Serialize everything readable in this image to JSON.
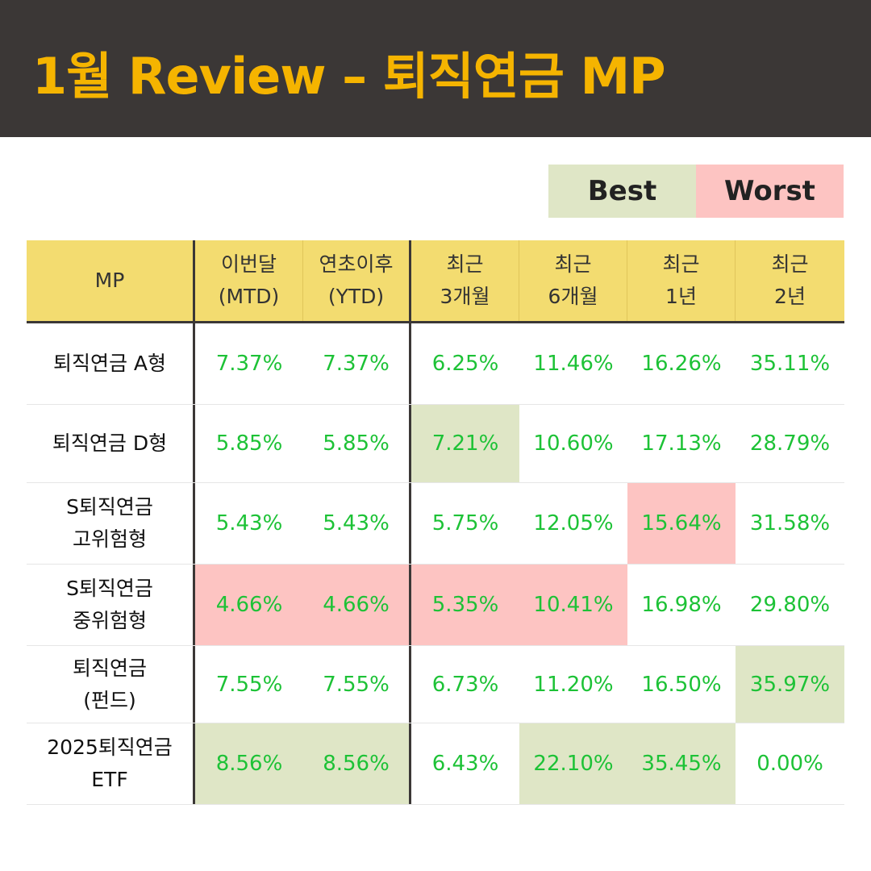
{
  "title": "1월 Review – 퇴직연금 MP",
  "legend": {
    "best": "Best",
    "worst": "Worst",
    "best_color": "#dfe6c6",
    "worst_color": "#fdc4c2"
  },
  "columns": [
    {
      "line1": "MP",
      "line2": ""
    },
    {
      "line1": "이번달",
      "line2": "(MTD)"
    },
    {
      "line1": "연초이후",
      "line2": "(YTD)"
    },
    {
      "line1": "최근",
      "line2": "3개월"
    },
    {
      "line1": "최근",
      "line2": "6개월"
    },
    {
      "line1": "최근",
      "line2": "1년"
    },
    {
      "line1": "최근",
      "line2": "2년"
    }
  ],
  "rows": [
    {
      "name1": "퇴직연금 A형",
      "name2": "",
      "values": [
        "7.37%",
        "7.37%",
        "6.25%",
        "11.46%",
        "16.26%",
        "35.11%"
      ],
      "marks": [
        "",
        "",
        "",
        "",
        "",
        ""
      ]
    },
    {
      "name1": "퇴직연금 D형",
      "name2": "",
      "values": [
        "5.85%",
        "5.85%",
        "7.21%",
        "10.60%",
        "17.13%",
        "28.79%"
      ],
      "marks": [
        "",
        "",
        "best",
        "",
        "",
        ""
      ]
    },
    {
      "name1": "S퇴직연금",
      "name2": "고위험형",
      "values": [
        "5.43%",
        "5.43%",
        "5.75%",
        "12.05%",
        "15.64%",
        "31.58%"
      ],
      "marks": [
        "",
        "",
        "",
        "",
        "worst",
        ""
      ]
    },
    {
      "name1": "S퇴직연금",
      "name2": "중위험형",
      "values": [
        "4.66%",
        "4.66%",
        "5.35%",
        "10.41%",
        "16.98%",
        "29.80%"
      ],
      "marks": [
        "worst",
        "worst",
        "worst",
        "worst",
        "",
        ""
      ]
    },
    {
      "name1": "퇴직연금",
      "name2": "(펀드)",
      "values": [
        "7.55%",
        "7.55%",
        "6.73%",
        "11.20%",
        "16.50%",
        "35.97%"
      ],
      "marks": [
        "",
        "",
        "",
        "",
        "",
        "best"
      ]
    },
    {
      "name1": "2025퇴직연금",
      "name2": "ETF",
      "values": [
        "8.56%",
        "8.56%",
        "6.43%",
        "22.10%",
        "35.45%",
        "0.00%"
      ],
      "marks": [
        "best",
        "best",
        "",
        "best",
        "best",
        ""
      ]
    }
  ]
}
